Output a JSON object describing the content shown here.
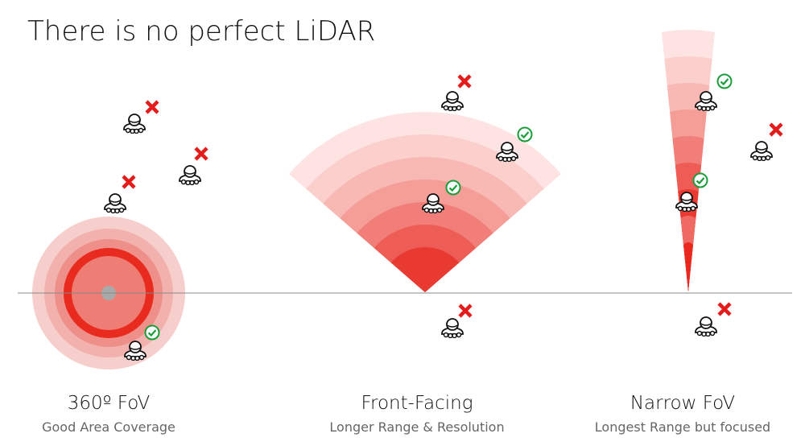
{
  "header": {
    "title": "There is no perfect LiDAR"
  },
  "panels": [
    {
      "label": "360º FoV",
      "caption": "Good Area Coverage"
    },
    {
      "label": "Front-Facing",
      "caption": "Longer Range & Resolution"
    },
    {
      "label": "Narrow FoV",
      "caption": "Longest Range but focused"
    }
  ]
}
